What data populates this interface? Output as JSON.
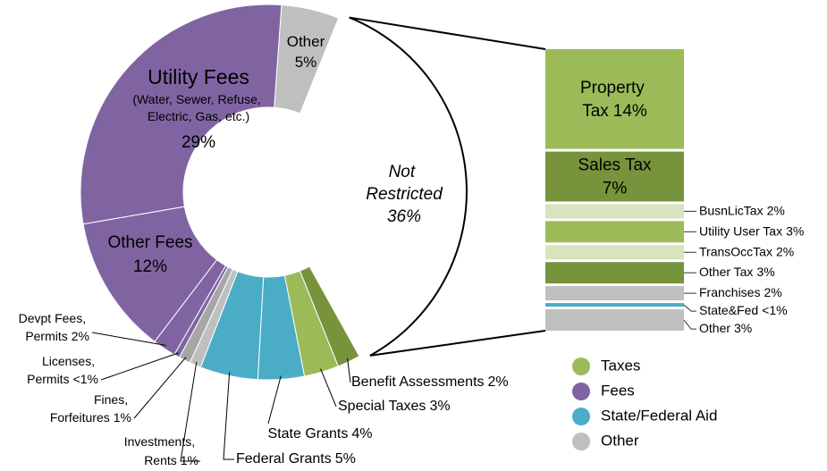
{
  "chart_data": [
    {
      "type": "donut",
      "categories": [
        "Not Restricted",
        "Benefit Assessments",
        "Special Taxes",
        "State Grants",
        "Federal Grants",
        "Investments, Rents",
        "Fines, Forfeitures",
        "Licenses, Permits",
        "Devpt Fees, Permits",
        "Other Fees",
        "Utility Fees",
        "Other"
      ],
      "values": [
        36,
        2,
        3,
        4,
        5,
        1,
        1,
        0.5,
        2,
        12,
        29,
        5
      ],
      "value_labels": [
        "36%",
        "2%",
        "3%",
        "4%",
        "5%",
        "1%",
        "1%",
        "<1%",
        "2%",
        "12%",
        "29%",
        "5%"
      ],
      "colors": [
        "#ffffff",
        "#77933c",
        "#9bbb59",
        "#4bacc6",
        "#4bacc6",
        "#bfbfbf",
        "#a6a6a6",
        "#8064a2",
        "#8064a2",
        "#8064a2",
        "#8064a2",
        "#bfbfbf"
      ],
      "annotation": "(Water, Sewer, Refuse, Electric, Gas, etc.)",
      "legend": [
        {
          "name": "Taxes",
          "color": "#9bbb59"
        },
        {
          "name": "Fees",
          "color": "#8064a2"
        },
        {
          "name": "State/Federal Aid",
          "color": "#4bacc6"
        },
        {
          "name": "Other",
          "color": "#bfbfbf"
        }
      ]
    },
    {
      "type": "stacked-bar",
      "categories": [
        "Property Tax",
        "Sales Tax",
        "BusnLicTax",
        "Utility User Tax",
        "TransOccTax",
        "Other Tax",
        "Franchises",
        "State&Fed",
        "Other"
      ],
      "values": [
        14,
        7,
        2,
        3,
        2,
        3,
        2,
        0.5,
        3
      ],
      "value_labels": [
        "14%",
        "7%",
        "2%",
        "3%",
        "2%",
        "3%",
        "2%",
        "<1%",
        "3%"
      ],
      "colors": [
        "#9bbb59",
        "#77933c",
        "#d7e4bd",
        "#9bbb59",
        "#d7e4bd",
        "#77933c",
        "#bfbfbf",
        "#4bacc6",
        "#bfbfbf"
      ]
    }
  ]
}
